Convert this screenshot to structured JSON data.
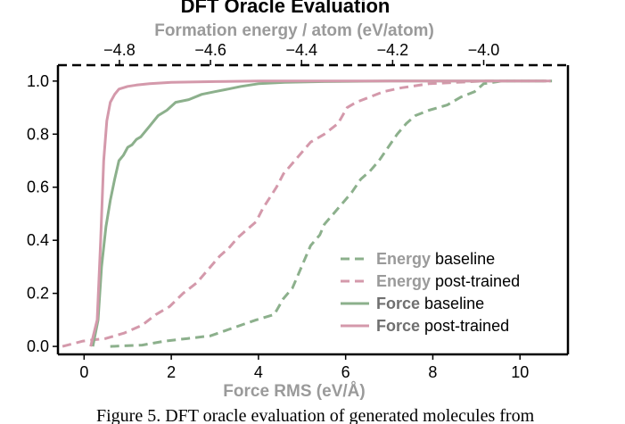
{
  "chart_data": {
    "type": "line",
    "title": "DFT Oracle Evaluation",
    "xlabel": "Force RMS (eV/Å)",
    "x2label": "Formation energy / atom (eV/atom)",
    "ylabel": "",
    "xlim": [
      -0.6,
      11.1
    ],
    "x2lim": [
      -4.935,
      -3.815
    ],
    "ylim": [
      -0.03,
      1.06
    ],
    "xticks": [
      "0",
      "2",
      "4",
      "6",
      "8",
      "10"
    ],
    "x2ticks": [
      "−4.8",
      "−4.6",
      "−4.4",
      "−4.2",
      "−4.0"
    ],
    "yticks": [
      "0.0",
      "0.2",
      "0.4",
      "0.6",
      "0.8",
      "1.0"
    ],
    "legend_position": "lower-right",
    "colors": {
      "green": "#8cb08c",
      "pink": "#d499ab"
    },
    "series": [
      {
        "name": "Energy baseline",
        "legend_key": "Energy",
        "legend_rest": "baseline",
        "axis": "top",
        "dash": "dashed",
        "color": "#8cb08c",
        "x": [
          -4.82,
          -4.75,
          -4.7,
          -4.65,
          -4.6,
          -4.55,
          -4.5,
          -4.46,
          -4.44,
          -4.42,
          -4.41,
          -4.4,
          -4.38,
          -4.36,
          -4.35,
          -4.33,
          -4.31,
          -4.29,
          -4.27,
          -4.25,
          -4.23,
          -4.21,
          -4.19,
          -4.17,
          -4.15,
          -4.12,
          -4.08,
          -4.05,
          -4.02,
          -4.0,
          -3.96,
          -3.85
        ],
        "y": [
          0.0,
          0.005,
          0.02,
          0.03,
          0.04,
          0.07,
          0.1,
          0.12,
          0.18,
          0.22,
          0.26,
          0.3,
          0.38,
          0.42,
          0.46,
          0.5,
          0.54,
          0.58,
          0.63,
          0.66,
          0.7,
          0.75,
          0.8,
          0.84,
          0.87,
          0.89,
          0.91,
          0.94,
          0.96,
          0.99,
          1.0,
          1.0
        ]
      },
      {
        "name": "Energy post-trained",
        "legend_key": "Energy",
        "legend_rest": "post-trained",
        "axis": "top",
        "dash": "dashed",
        "color": "#d499ab",
        "x": [
          -4.925,
          -4.88,
          -4.83,
          -4.79,
          -4.75,
          -4.72,
          -4.69,
          -4.66,
          -4.63,
          -4.6,
          -4.58,
          -4.56,
          -4.54,
          -4.52,
          -4.5,
          -4.485,
          -4.47,
          -4.455,
          -4.44,
          -4.42,
          -4.4,
          -4.38,
          -4.35,
          -4.32,
          -4.3,
          -4.28,
          -4.25,
          -4.22,
          -4.18,
          -4.12,
          -4.0,
          -3.85
        ],
        "y": [
          0.0,
          0.02,
          0.03,
          0.05,
          0.08,
          0.12,
          0.15,
          0.2,
          0.24,
          0.3,
          0.34,
          0.37,
          0.41,
          0.44,
          0.47,
          0.52,
          0.56,
          0.6,
          0.65,
          0.69,
          0.73,
          0.77,
          0.8,
          0.84,
          0.9,
          0.92,
          0.94,
          0.96,
          0.975,
          0.99,
          1.0,
          1.0
        ]
      },
      {
        "name": "Force baseline",
        "legend_key": "Force",
        "legend_rest": "baseline",
        "axis": "bottom",
        "dash": "solid",
        "color": "#8cb08c",
        "x": [
          0.2,
          0.32,
          0.4,
          0.5,
          0.6,
          0.7,
          0.8,
          0.9,
          1.0,
          1.1,
          1.2,
          1.3,
          1.5,
          1.7,
          1.9,
          2.1,
          2.4,
          2.7,
          3.0,
          3.3,
          3.6,
          4.0,
          4.6,
          5.5,
          7.0,
          9.0,
          10.6
        ],
        "y": [
          0.0,
          0.1,
          0.3,
          0.45,
          0.55,
          0.63,
          0.7,
          0.72,
          0.75,
          0.76,
          0.78,
          0.79,
          0.83,
          0.87,
          0.89,
          0.92,
          0.93,
          0.95,
          0.96,
          0.97,
          0.98,
          0.99,
          0.995,
          0.998,
          1.0,
          1.0,
          1.0
        ]
      },
      {
        "name": "Force post-trained",
        "legend_key": "Force",
        "legend_rest": "post-trained",
        "axis": "bottom",
        "dash": "solid",
        "color": "#d499ab",
        "x": [
          0.15,
          0.3,
          0.38,
          0.45,
          0.52,
          0.6,
          0.7,
          0.8,
          0.9,
          1.0,
          1.2,
          1.5,
          2.0,
          3.0,
          4.0,
          6.0,
          8.0,
          10.6
        ],
        "y": [
          0.0,
          0.1,
          0.4,
          0.7,
          0.85,
          0.92,
          0.95,
          0.97,
          0.975,
          0.98,
          0.985,
          0.99,
          0.995,
          0.998,
          1.0,
          1.0,
          1.0,
          1.0
        ]
      }
    ]
  },
  "caption": "Figure 5. DFT oracle evaluation of generated molecules from"
}
